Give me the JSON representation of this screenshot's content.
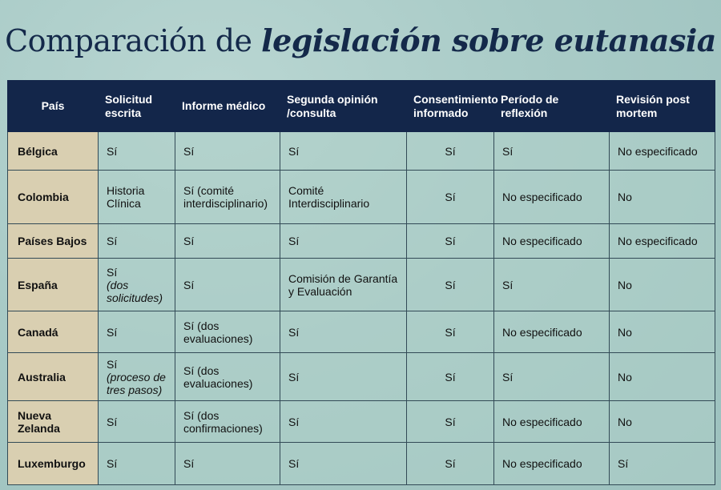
{
  "title": {
    "plain": "Comparación de",
    "emphasis": "legislación sobre eutanasia"
  },
  "headers": [
    "País",
    "Solicitud escrita",
    "Informe médico",
    "Segunda opinión /consulta",
    "Consentimiento informado",
    "Período de reflexión",
    "Revisión post mortem"
  ],
  "rows": [
    {
      "pais": "Bélgica",
      "solicitud": "Sí",
      "solicitud_note": "",
      "informe": "Sí",
      "segunda": "Sí",
      "consentimiento": "Sí",
      "periodo": "Sí",
      "revision": "No especificado"
    },
    {
      "pais": "Colombia",
      "solicitud": "Historia Clínica",
      "solicitud_note": "",
      "informe": "Sí (comité interdisciplinario)",
      "segunda": "Comité Interdisciplinario",
      "consentimiento": "Sí",
      "periodo": "No especificado",
      "revision": "No"
    },
    {
      "pais": "Países Bajos",
      "solicitud": "Sí",
      "solicitud_note": "",
      "informe": "Sí",
      "segunda": "Sí",
      "consentimiento": "Sí",
      "periodo": "No especificado",
      "revision": "No especificado"
    },
    {
      "pais": "España",
      "solicitud": "Sí",
      "solicitud_note": "(dos solicitudes)",
      "informe": "Sí",
      "segunda": "Comisión de Garantía y Evaluación",
      "consentimiento": "Sí",
      "periodo": "Sí",
      "revision": "No"
    },
    {
      "pais": "Canadá",
      "solicitud": "Sí",
      "solicitud_note": "",
      "informe": "Sí (dos evaluaciones)",
      "segunda": "Sí",
      "consentimiento": "Sí",
      "periodo": "No especificado",
      "revision": "No"
    },
    {
      "pais": "Australia",
      "solicitud": "Sí",
      "solicitud_note": "(proceso de tres pasos)",
      "informe": "Sí (dos evaluaciones)",
      "segunda": "Sí",
      "consentimiento": "Sí",
      "periodo": "Sí",
      "revision": "No"
    },
    {
      "pais": "Nueva Zelanda",
      "solicitud": "Sí",
      "solicitud_note": "",
      "informe": "Sí (dos confirmaciones)",
      "segunda": "Sí",
      "consentimiento": "Sí",
      "periodo": "No especificado",
      "revision": "No"
    },
    {
      "pais": "Luxemburgo",
      "solicitud": "Sí",
      "solicitud_note": "",
      "informe": "Sí",
      "segunda": "Sí",
      "consentimiento": "Sí",
      "periodo": "No especificado",
      "revision": "Sí"
    }
  ],
  "colors": {
    "header_bg": "#13264a",
    "title_color": "#14294a",
    "country_bg": "#d9cfb1",
    "cell_bg": "#afcfc8",
    "border": "#324a56"
  }
}
